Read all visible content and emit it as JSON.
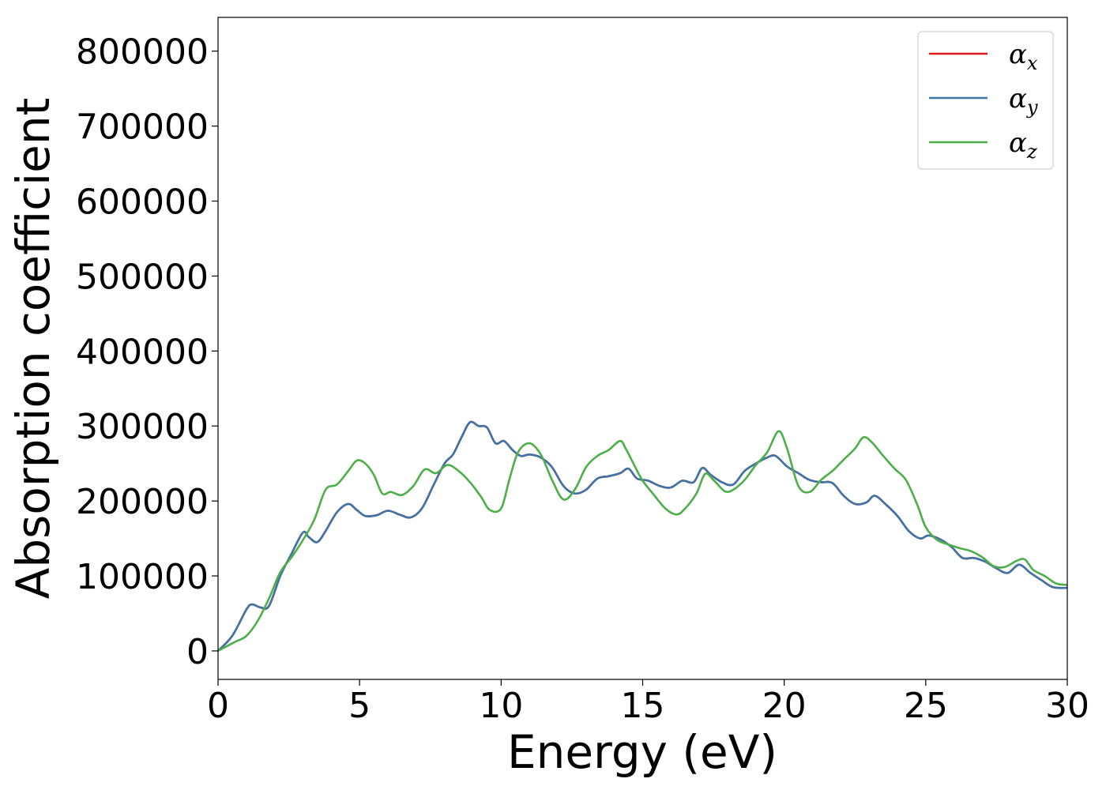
{
  "chart_data": {
    "type": "line",
    "xlabel": "Energy (eV)",
    "ylabel": "Absorption coefficient",
    "xlim": [
      0,
      30
    ],
    "ylim": [
      -38000,
      845000
    ],
    "xticks": [
      0,
      5,
      10,
      15,
      20,
      25,
      30
    ],
    "xtick_labels": [
      "0",
      "5",
      "10",
      "15",
      "20",
      "25",
      "30"
    ],
    "yticks": [
      0,
      100000,
      200000,
      300000,
      400000,
      500000,
      600000,
      700000,
      800000
    ],
    "ytick_labels": [
      "0",
      "100000",
      "200000",
      "300000",
      "400000",
      "500000",
      "600000",
      "700000",
      "800000"
    ],
    "grid": false,
    "legend_position": "top-right",
    "series": [
      {
        "name": "αx",
        "legend_main": "α",
        "legend_sub": "x",
        "color": "#e41a1c",
        "hidden_behind": "αy",
        "x": [
          0,
          0.5,
          1.0,
          1.2,
          1.5,
          1.8,
          2.2,
          2.6,
          3.0,
          3.2,
          3.5,
          3.8,
          4.2,
          4.6,
          4.9,
          5.2,
          5.6,
          6.0,
          6.4,
          6.8,
          7.2,
          7.6,
          8.0,
          8.3,
          8.6,
          8.9,
          9.2,
          9.5,
          9.8,
          10.1,
          10.4,
          10.7,
          11.0,
          11.4,
          11.8,
          12.2,
          12.6,
          13.0,
          13.4,
          13.8,
          14.2,
          14.5,
          14.8,
          15.2,
          15.6,
          16.0,
          16.4,
          16.8,
          17.1,
          17.4,
          17.8,
          18.2,
          18.6,
          19.0,
          19.4,
          19.7,
          20.1,
          20.5,
          20.9,
          21.3,
          21.7,
          22.1,
          22.5,
          22.9,
          23.2,
          23.6,
          24.0,
          24.4,
          24.8,
          25.1,
          25.5,
          25.9,
          26.3,
          26.7,
          27.1,
          27.5,
          27.9,
          28.3,
          28.7,
          29.1,
          29.5,
          30.0
        ],
        "y": [
          0,
          20000,
          55000,
          62000,
          58000,
          60000,
          100000,
          130000,
          158000,
          152000,
          145000,
          160000,
          185000,
          196000,
          188000,
          180000,
          181000,
          187000,
          182000,
          178000,
          190000,
          220000,
          250000,
          262000,
          285000,
          305000,
          300000,
          298000,
          277000,
          280000,
          268000,
          260000,
          262000,
          258000,
          245000,
          220000,
          210000,
          215000,
          230000,
          233000,
          237000,
          243000,
          230000,
          227000,
          220000,
          218000,
          227000,
          225000,
          244000,
          235000,
          225000,
          222000,
          240000,
          250000,
          258000,
          260000,
          246000,
          237000,
          228000,
          225000,
          224000,
          207000,
          196000,
          198000,
          207000,
          195000,
          180000,
          160000,
          150000,
          154000,
          149000,
          139000,
          124000,
          124000,
          119000,
          110000,
          104000,
          115000,
          104000,
          94000,
          85000,
          84000
        ]
      },
      {
        "name": "αy",
        "legend_main": "α",
        "legend_sub": "y",
        "color": "#3f74a6",
        "x": [
          0,
          0.5,
          1.0,
          1.2,
          1.5,
          1.8,
          2.2,
          2.6,
          3.0,
          3.2,
          3.5,
          3.8,
          4.2,
          4.6,
          4.9,
          5.2,
          5.6,
          6.0,
          6.4,
          6.8,
          7.2,
          7.6,
          8.0,
          8.3,
          8.6,
          8.9,
          9.2,
          9.5,
          9.8,
          10.1,
          10.4,
          10.7,
          11.0,
          11.4,
          11.8,
          12.2,
          12.6,
          13.0,
          13.4,
          13.8,
          14.2,
          14.5,
          14.8,
          15.2,
          15.6,
          16.0,
          16.4,
          16.8,
          17.1,
          17.4,
          17.8,
          18.2,
          18.6,
          19.0,
          19.4,
          19.7,
          20.1,
          20.5,
          20.9,
          21.3,
          21.7,
          22.1,
          22.5,
          22.9,
          23.2,
          23.6,
          24.0,
          24.4,
          24.8,
          25.1,
          25.5,
          25.9,
          26.3,
          26.7,
          27.1,
          27.5,
          27.9,
          28.3,
          28.7,
          29.1,
          29.5,
          30.0
        ],
        "y": [
          0,
          20000,
          55000,
          62000,
          58000,
          60000,
          100000,
          130000,
          158000,
          152000,
          145000,
          160000,
          185000,
          196000,
          188000,
          180000,
          181000,
          187000,
          182000,
          178000,
          190000,
          220000,
          250000,
          262000,
          285000,
          305000,
          300000,
          298000,
          277000,
          280000,
          268000,
          260000,
          262000,
          258000,
          245000,
          220000,
          210000,
          215000,
          230000,
          233000,
          237000,
          243000,
          230000,
          227000,
          220000,
          218000,
          227000,
          225000,
          244000,
          235000,
          225000,
          222000,
          240000,
          250000,
          258000,
          260000,
          246000,
          237000,
          228000,
          225000,
          224000,
          207000,
          196000,
          198000,
          207000,
          195000,
          180000,
          160000,
          150000,
          154000,
          149000,
          139000,
          124000,
          124000,
          119000,
          110000,
          104000,
          115000,
          104000,
          94000,
          85000,
          84000
        ]
      },
      {
        "name": "αz",
        "legend_main": "α",
        "legend_sub": "z",
        "color": "#4daf4a",
        "x": [
          0,
          0.6,
          1.0,
          1.4,
          1.8,
          2.2,
          2.6,
          3.0,
          3.4,
          3.8,
          4.2,
          4.6,
          4.9,
          5.2,
          5.5,
          5.8,
          6.1,
          6.5,
          6.9,
          7.3,
          7.7,
          8.1,
          8.5,
          8.9,
          9.3,
          9.6,
          10.0,
          10.3,
          10.6,
          11.0,
          11.4,
          11.8,
          12.2,
          12.6,
          13.0,
          13.4,
          13.8,
          14.2,
          14.4,
          14.7,
          15.0,
          15.4,
          15.8,
          16.2,
          16.5,
          16.9,
          17.2,
          17.5,
          17.9,
          18.2,
          18.6,
          19.0,
          19.4,
          19.8,
          20.1,
          20.5,
          20.9,
          21.3,
          21.7,
          22.1,
          22.5,
          22.8,
          23.1,
          23.5,
          23.9,
          24.3,
          24.7,
          25.0,
          25.4,
          25.8,
          26.2,
          26.6,
          27.0,
          27.4,
          27.8,
          28.2,
          28.5,
          28.8,
          29.2,
          29.6,
          30.0
        ],
        "y": [
          0,
          12000,
          20000,
          40000,
          70000,
          105000,
          125000,
          148000,
          175000,
          215000,
          222000,
          240000,
          254000,
          250000,
          235000,
          210000,
          212000,
          208000,
          220000,
          242000,
          237000,
          248000,
          240000,
          225000,
          205000,
          188000,
          190000,
          230000,
          265000,
          277000,
          262000,
          228000,
          202000,
          215000,
          245000,
          260000,
          268000,
          280000,
          270000,
          248000,
          227000,
          208000,
          190000,
          182000,
          190000,
          210000,
          236000,
          228000,
          213000,
          215000,
          228000,
          248000,
          265000,
          293000,
          270000,
          220000,
          212000,
          228000,
          240000,
          255000,
          270000,
          285000,
          278000,
          260000,
          243000,
          228000,
          195000,
          165000,
          148000,
          142000,
          137000,
          133000,
          125000,
          113000,
          112000,
          120000,
          122000,
          108000,
          100000,
          90000,
          88000
        ]
      }
    ]
  }
}
